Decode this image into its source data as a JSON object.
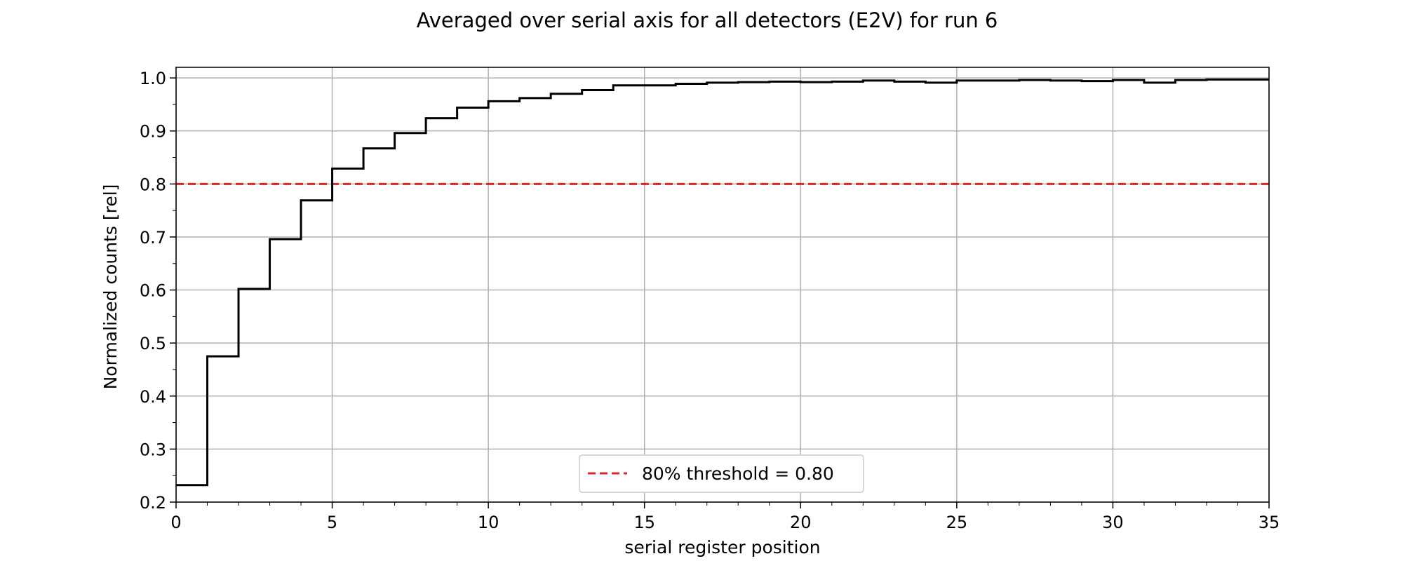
{
  "chart_data": {
    "type": "line",
    "drawstyle": "steps-post",
    "title": "Averaged over serial axis for all detectors (E2V) for run 6",
    "xlabel": "serial register position",
    "ylabel": "Normalized counts [rel]",
    "xlim": [
      0,
      35
    ],
    "ylim": [
      0.2,
      1.02
    ],
    "xticks": [
      0,
      5,
      10,
      15,
      20,
      25,
      30,
      35
    ],
    "yticks": [
      0.2,
      0.3,
      0.4,
      0.5,
      0.6,
      0.7,
      0.8,
      0.9,
      1.0
    ],
    "ytick_labels": [
      "0.2",
      "0.3",
      "0.4",
      "0.5",
      "0.6",
      "0.7",
      "0.8",
      "0.9",
      "1.0"
    ],
    "grid": true,
    "legend_position": "bottom-center",
    "series": [
      {
        "color": "#000000",
        "x": [
          0,
          1,
          2,
          3,
          4,
          5,
          6,
          7,
          8,
          9,
          10,
          11,
          12,
          13,
          14,
          15,
          16,
          17,
          18,
          19,
          20,
          21,
          22,
          23,
          24,
          25,
          26,
          27,
          28,
          29,
          30,
          31,
          32,
          33,
          34,
          35
        ],
        "values": [
          0.232,
          0.475,
          0.602,
          0.696,
          0.769,
          0.829,
          0.867,
          0.896,
          0.924,
          0.944,
          0.956,
          0.962,
          0.97,
          0.977,
          0.986,
          0.986,
          0.989,
          0.991,
          0.992,
          0.993,
          0.992,
          0.993,
          0.995,
          0.993,
          0.991,
          0.995,
          0.995,
          0.996,
          0.995,
          0.994,
          0.996,
          0.991,
          0.996,
          0.997,
          0.997,
          0.997
        ]
      }
    ],
    "threshold": {
      "value": 0.8,
      "label": "80% threshold = 0.80",
      "color": "#d62728"
    }
  }
}
